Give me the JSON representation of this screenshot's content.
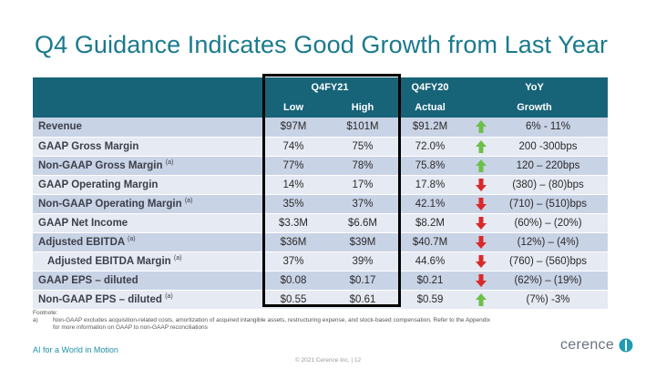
{
  "title": "Q4 Guidance Indicates Good Growth from Last Year",
  "colors": {
    "header_bg": "#176378",
    "accent": "#1a7a8c",
    "up": "#6cc04a",
    "down": "#d92a2a"
  },
  "table": {
    "header_row1": {
      "group1": "Q4FY21",
      "group2": "Q4FY20",
      "group3": "YoY"
    },
    "header_row2": {
      "low": "Low",
      "high": "High",
      "actual": "Actual",
      "growth": "Growth"
    },
    "rows": [
      {
        "label": "Revenue",
        "sup": "",
        "low": "$97M",
        "high": "$101M",
        "actual": "$91.2M",
        "trend": "up",
        "growth": "6% - 11%"
      },
      {
        "label": "GAAP Gross Margin",
        "sup": "",
        "low": "74%",
        "high": "75%",
        "actual": "72.0%",
        "trend": "up",
        "growth": "200 -300bps"
      },
      {
        "label": "Non-GAAP Gross Margin",
        "sup": "(a)",
        "low": "77%",
        "high": "78%",
        "actual": "75.8%",
        "trend": "up",
        "growth": "120 – 220bps"
      },
      {
        "label": "GAAP Operating Margin",
        "sup": "",
        "low": "14%",
        "high": "17%",
        "actual": "17.8%",
        "trend": "down",
        "growth": "(380) – (80)bps"
      },
      {
        "label": "Non-GAAP Operating Margin",
        "sup": "(a)",
        "low": "35%",
        "high": "37%",
        "actual": "42.1%",
        "trend": "down",
        "growth": "(710) – (510)bps"
      },
      {
        "label": "GAAP Net Income",
        "sup": "",
        "low": "$3.3M",
        "high": "$6.6M",
        "actual": "$8.2M",
        "trend": "down",
        "growth": "(60%) – (20%)"
      },
      {
        "label": "Adjusted EBITDA",
        "sup": "(a)",
        "low": "$36M",
        "high": "$39M",
        "actual": "$40.7M",
        "trend": "down",
        "growth": "(12%) – (4%)"
      },
      {
        "label": "Adjusted EBITDA Margin",
        "sup": "(a)",
        "low": "37%",
        "high": "39%",
        "actual": "44.6%",
        "trend": "down",
        "growth": "(760) – (560)bps"
      },
      {
        "label": "GAAP EPS – diluted",
        "sup": "",
        "low": "$0.08",
        "high": "$0.17",
        "actual": "$0.21",
        "trend": "down",
        "growth": "(62%) – (19%)"
      },
      {
        "label": "Non-GAAP EPS – diluted",
        "sup": "(a)",
        "low": "$0.55",
        "high": "$0.61",
        "actual": "$0.59",
        "trend": "up",
        "growth": "(7%) -3%"
      }
    ]
  },
  "footnote": {
    "heading": "Footnote:",
    "marker": "a)",
    "line1": "Non-GAAP excludes acquisition-related costs, amortization of acquired intangible assets, restructuring expense, and stock-based compensation.    Refer to the Appendix",
    "line2": "for more information on GAAP to non-GAAP reconciliations"
  },
  "tagline": "AI for a World in Motion",
  "copyright": "© 2021 Cerence Inc.  |  12",
  "logo_text": "cerence"
}
